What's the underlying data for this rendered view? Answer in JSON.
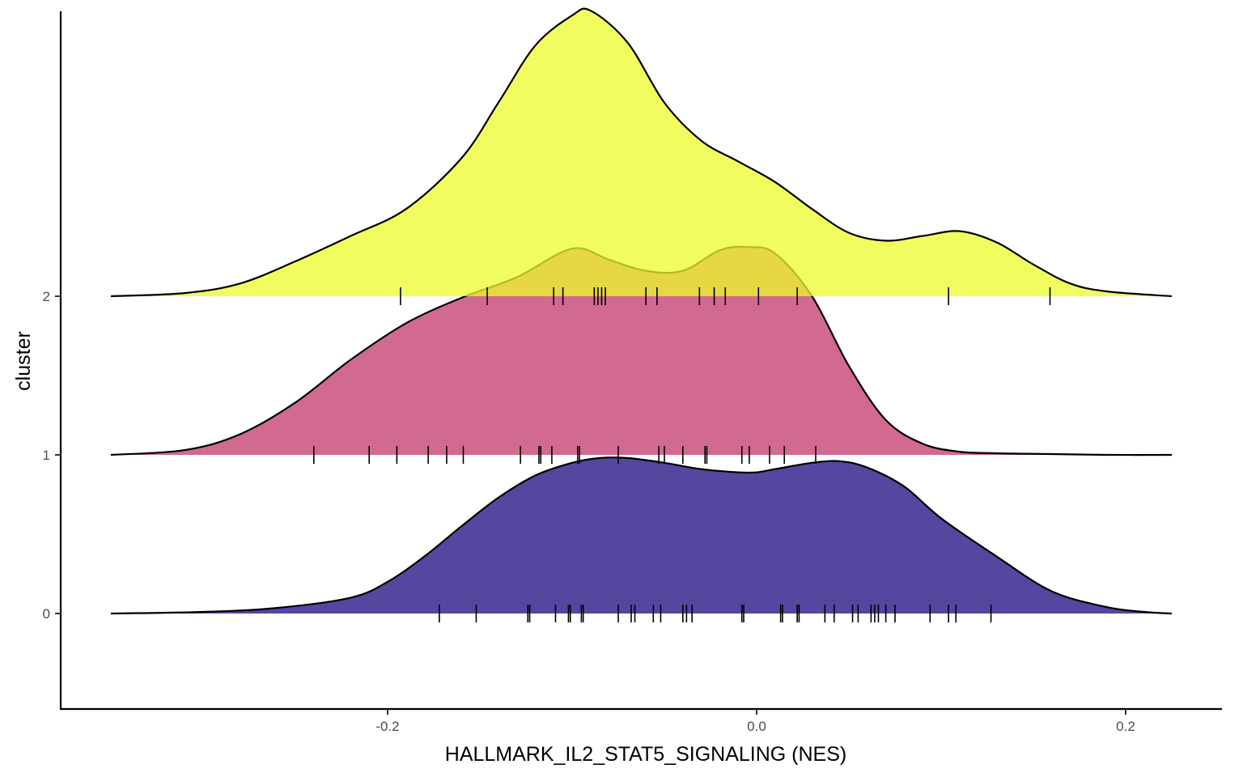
{
  "chart_data": {
    "type": "ridgeline",
    "xlabel": "HALLMARK_IL2_STAT5_SIGNALING (NES)",
    "ylabel": "cluster",
    "xlim": [
      -0.36,
      0.25
    ],
    "x_ticks": [
      {
        "value": -0.2,
        "label": "-0.2"
      },
      {
        "value": 0.0,
        "label": "0.0"
      },
      {
        "value": 0.2,
        "label": "0.2"
      }
    ],
    "grid": false,
    "legend": "none",
    "series": [
      {
        "name": "0",
        "color": "#2e1f8a",
        "opacity": 0.82,
        "density_x": [
          -0.35,
          -0.3,
          -0.26,
          -0.22,
          -0.2,
          -0.18,
          -0.16,
          -0.14,
          -0.12,
          -0.1,
          -0.085,
          -0.07,
          -0.05,
          -0.03,
          -0.01,
          0.0,
          0.01,
          0.03,
          0.045,
          0.06,
          0.08,
          0.1,
          0.13,
          0.16,
          0.19,
          0.21,
          0.225
        ],
        "density_y": [
          0.0,
          0.01,
          0.035,
          0.1,
          0.2,
          0.36,
          0.55,
          0.73,
          0.87,
          0.95,
          0.98,
          0.98,
          0.95,
          0.91,
          0.89,
          0.89,
          0.91,
          0.95,
          0.96,
          0.92,
          0.8,
          0.6,
          0.36,
          0.14,
          0.04,
          0.01,
          0.0
        ],
        "rug": [
          -0.172,
          -0.152,
          -0.124,
          -0.123,
          -0.109,
          -0.102,
          -0.101,
          -0.095,
          -0.094,
          -0.075,
          -0.068,
          -0.066,
          -0.056,
          -0.052,
          -0.04,
          -0.038,
          -0.035,
          -0.008,
          -0.007,
          0.013,
          0.014,
          0.022,
          0.023,
          0.037,
          0.042,
          0.052,
          0.055,
          0.062,
          0.064,
          0.066,
          0.07,
          0.075,
          0.094,
          0.104,
          0.108,
          0.127
        ]
      },
      {
        "name": "1",
        "color": "#c54475",
        "opacity": 0.8,
        "density_x": [
          -0.35,
          -0.31,
          -0.28,
          -0.25,
          -0.22,
          -0.19,
          -0.16,
          -0.13,
          -0.1,
          -0.08,
          -0.06,
          -0.04,
          -0.02,
          -0.005,
          0.01,
          0.03,
          0.05,
          0.07,
          0.09,
          0.11,
          0.13,
          0.16,
          0.19,
          0.225
        ],
        "density_y": [
          0.0,
          0.03,
          0.13,
          0.33,
          0.6,
          0.83,
          0.99,
          1.12,
          1.3,
          1.23,
          1.16,
          1.16,
          1.29,
          1.31,
          1.27,
          1.0,
          0.56,
          0.22,
          0.07,
          0.02,
          0.01,
          0.005,
          0.0,
          0.0
        ],
        "rug": [
          -0.24,
          -0.21,
          -0.195,
          -0.178,
          -0.168,
          -0.159,
          -0.128,
          -0.118,
          -0.117,
          -0.111,
          -0.097,
          -0.096,
          -0.075,
          -0.053,
          -0.05,
          -0.04,
          -0.028,
          -0.027,
          -0.008,
          -0.004,
          0.007,
          0.015,
          0.032
        ]
      },
      {
        "name": "2",
        "color": "#ecfc2a",
        "opacity": 0.75,
        "density_x": [
          -0.35,
          -0.31,
          -0.28,
          -0.25,
          -0.22,
          -0.19,
          -0.16,
          -0.14,
          -0.12,
          -0.1,
          -0.09,
          -0.07,
          -0.05,
          -0.03,
          -0.01,
          0.01,
          0.03,
          0.05,
          0.07,
          0.09,
          0.11,
          0.13,
          0.15,
          0.17,
          0.19,
          0.225
        ],
        "density_y": [
          0.0,
          0.02,
          0.08,
          0.22,
          0.38,
          0.55,
          0.87,
          1.22,
          1.58,
          1.77,
          1.8,
          1.6,
          1.22,
          0.98,
          0.85,
          0.72,
          0.55,
          0.4,
          0.35,
          0.38,
          0.41,
          0.34,
          0.2,
          0.08,
          0.03,
          0.0
        ],
        "rug": [
          -0.193,
          -0.146,
          -0.11,
          -0.105,
          -0.088,
          -0.086,
          -0.084,
          -0.082,
          -0.06,
          -0.054,
          -0.031,
          -0.023,
          -0.017,
          0.001,
          0.022,
          0.104,
          0.159
        ]
      }
    ]
  }
}
